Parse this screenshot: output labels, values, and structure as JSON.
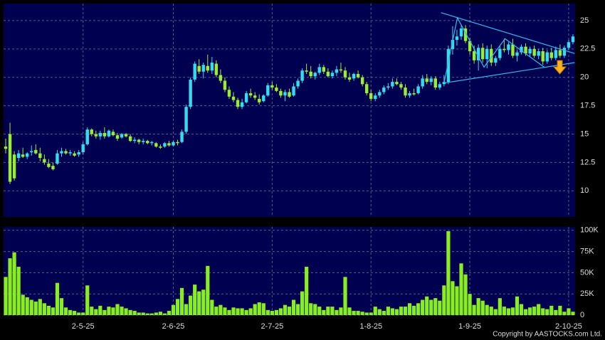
{
  "chart_data": [
    {
      "type": "candlestick",
      "categories": [
        null,
        null,
        null,
        null,
        null,
        null,
        null,
        null,
        null,
        null,
        null,
        null,
        null,
        null,
        null,
        null,
        null,
        null,
        "2-5-25",
        null,
        null,
        null,
        null,
        null,
        null,
        null,
        null,
        null,
        null,
        null,
        null,
        null,
        null,
        null,
        null,
        null,
        null,
        null,
        null,
        "2-6-25",
        null,
        null,
        null,
        null,
        null,
        null,
        null,
        null,
        null,
        null,
        null,
        null,
        null,
        null,
        null,
        null,
        null,
        null,
        null,
        null,
        null,
        null,
        "2-7-25",
        null,
        null,
        null,
        null,
        null,
        null,
        null,
        null,
        null,
        null,
        null,
        null,
        null,
        null,
        null,
        null,
        null,
        null,
        null,
        null,
        null,
        null,
        "1-8-25",
        null,
        null,
        null,
        null,
        null,
        null,
        null,
        null,
        null,
        null,
        null,
        null,
        null,
        null,
        null,
        null,
        null,
        null,
        null,
        null,
        null,
        null,
        "1-9-25",
        null,
        null,
        null,
        null,
        null,
        null,
        null,
        null,
        null,
        null,
        null,
        null,
        null,
        null,
        null,
        null,
        null,
        null,
        null,
        null,
        null,
        null,
        "2-10-25",
        null
      ],
      "ohlc": [
        [
          13.9,
          14.6,
          13.3,
          13.7
        ],
        [
          15.0,
          16.0,
          10.6,
          10.8
        ],
        [
          13.2,
          13.5,
          10.9,
          11.1
        ],
        [
          12.9,
          13.6,
          12.6,
          13.3
        ],
        [
          13.2,
          13.8,
          12.9,
          13.0
        ],
        [
          13.0,
          13.4,
          12.8,
          13.3
        ],
        [
          13.4,
          14.0,
          13.1,
          13.5
        ],
        [
          13.6,
          14.1,
          13.2,
          13.3
        ],
        [
          13.3,
          13.8,
          12.6,
          12.9
        ],
        [
          12.8,
          13.2,
          12.3,
          12.5
        ],
        [
          12.4,
          12.8,
          12.0,
          12.1
        ],
        [
          12.2,
          12.5,
          11.8,
          11.9
        ],
        [
          12.4,
          13.6,
          12.3,
          13.3
        ],
        [
          13.3,
          13.8,
          13.0,
          13.5
        ],
        [
          13.5,
          13.7,
          13.2,
          13.3
        ],
        [
          13.3,
          13.6,
          13.1,
          13.4
        ],
        [
          13.3,
          13.5,
          13.0,
          13.1
        ],
        [
          13.2,
          13.6,
          13.0,
          13.4
        ],
        [
          13.4,
          14.3,
          13.2,
          14.1
        ],
        [
          14.1,
          15.6,
          14.0,
          15.4
        ],
        [
          15.4,
          15.5,
          14.8,
          15.0
        ],
        [
          15.0,
          15.3,
          14.6,
          14.8
        ],
        [
          14.8,
          15.3,
          14.5,
          15.1
        ],
        [
          15.1,
          15.6,
          14.6,
          14.8
        ],
        [
          14.8,
          15.4,
          14.7,
          15.3
        ],
        [
          15.2,
          15.4,
          14.8,
          14.9
        ],
        [
          14.9,
          15.1,
          14.4,
          14.6
        ],
        [
          14.7,
          15.1,
          14.6,
          15.0
        ],
        [
          15.0,
          15.1,
          14.7,
          14.8
        ],
        [
          14.8,
          15.0,
          14.3,
          14.4
        ],
        [
          14.4,
          14.7,
          14.2,
          14.5
        ],
        [
          14.5,
          14.6,
          14.1,
          14.3
        ],
        [
          14.3,
          14.6,
          14.1,
          14.4
        ],
        [
          14.4,
          14.5,
          14.1,
          14.2
        ],
        [
          14.2,
          14.4,
          14.0,
          14.3
        ],
        [
          14.2,
          14.3,
          13.8,
          13.9
        ],
        [
          13.9,
          14.1,
          13.7,
          13.8
        ],
        [
          13.9,
          14.3,
          13.8,
          14.2
        ],
        [
          14.2,
          14.4,
          13.9,
          14.0
        ],
        [
          14.0,
          14.4,
          13.9,
          14.3
        ],
        [
          14.3,
          14.5,
          14.0,
          14.2
        ],
        [
          14.3,
          15.4,
          14.2,
          15.2
        ],
        [
          15.2,
          17.6,
          15.0,
          17.4
        ],
        [
          17.4,
          20.0,
          17.2,
          19.8
        ],
        [
          19.8,
          21.4,
          19.6,
          21.2
        ],
        [
          21.0,
          21.6,
          20.3,
          20.5
        ],
        [
          20.5,
          21.3,
          19.9,
          21.1
        ],
        [
          21.0,
          22.0,
          20.4,
          20.6
        ],
        [
          20.6,
          21.8,
          20.3,
          21.3
        ],
        [
          21.2,
          21.5,
          20.0,
          20.2
        ],
        [
          20.2,
          20.7,
          19.5,
          19.7
        ],
        [
          19.7,
          20.0,
          18.7,
          18.9
        ],
        [
          18.9,
          19.2,
          18.1,
          18.3
        ],
        [
          18.3,
          18.7,
          17.8,
          18.0
        ],
        [
          18.0,
          18.2,
          17.2,
          17.4
        ],
        [
          17.4,
          18.1,
          17.2,
          17.8
        ],
        [
          17.8,
          18.8,
          17.7,
          18.6
        ],
        [
          18.6,
          19.0,
          18.2,
          18.4
        ],
        [
          18.4,
          18.7,
          18.0,
          18.2
        ],
        [
          18.1,
          18.5,
          17.6,
          17.8
        ],
        [
          17.9,
          18.5,
          17.8,
          18.4
        ],
        [
          18.4,
          19.5,
          18.3,
          19.3
        ],
        [
          19.3,
          19.6,
          18.9,
          19.1
        ],
        [
          19.1,
          19.4,
          18.7,
          18.8
        ],
        [
          18.8,
          19.0,
          18.2,
          18.4
        ],
        [
          18.4,
          18.9,
          17.9,
          18.7
        ],
        [
          18.7,
          19.0,
          18.2,
          18.3
        ],
        [
          18.4,
          19.5,
          18.3,
          19.2
        ],
        [
          19.2,
          19.9,
          19.0,
          19.7
        ],
        [
          19.7,
          20.8,
          19.5,
          20.6
        ],
        [
          20.6,
          21.2,
          20.3,
          20.5
        ],
        [
          20.5,
          21.0,
          19.9,
          20.1
        ],
        [
          20.1,
          20.5,
          19.8,
          20.4
        ],
        [
          20.4,
          21.2,
          20.2,
          20.9
        ],
        [
          20.9,
          21.1,
          20.3,
          20.5
        ],
        [
          20.5,
          20.8,
          20.0,
          20.1
        ],
        [
          20.1,
          20.6,
          19.9,
          20.4
        ],
        [
          20.4,
          21.0,
          20.1,
          20.7
        ],
        [
          20.7,
          21.3,
          20.4,
          20.6
        ],
        [
          20.6,
          20.9,
          19.8,
          20.0
        ],
        [
          20.0,
          20.4,
          19.6,
          19.8
        ],
        [
          19.9,
          20.4,
          19.7,
          20.3
        ],
        [
          20.3,
          20.6,
          19.9,
          20.0
        ],
        [
          20.0,
          20.2,
          19.2,
          19.4
        ],
        [
          19.4,
          19.6,
          18.4,
          18.6
        ],
        [
          18.6,
          18.9,
          17.9,
          18.1
        ],
        [
          18.1,
          18.6,
          17.9,
          18.4
        ],
        [
          18.4,
          18.9,
          18.2,
          18.7
        ],
        [
          18.7,
          19.3,
          18.5,
          19.1
        ],
        [
          19.1,
          19.5,
          18.9,
          19.2
        ],
        [
          19.2,
          19.9,
          19.0,
          19.6
        ],
        [
          19.6,
          19.9,
          19.3,
          19.4
        ],
        [
          19.4,
          19.6,
          18.9,
          19.1
        ],
        [
          19.1,
          19.4,
          18.2,
          18.4
        ],
        [
          18.4,
          18.8,
          18.2,
          18.6
        ],
        [
          18.6,
          19.0,
          18.4,
          18.5
        ],
        [
          18.6,
          19.4,
          18.5,
          19.2
        ],
        [
          19.2,
          20.2,
          19.0,
          19.9
        ],
        [
          19.9,
          20.3,
          19.4,
          19.6
        ],
        [
          19.6,
          20.1,
          19.3,
          19.9
        ],
        [
          19.9,
          20.1,
          18.9,
          19.1
        ],
        [
          19.1,
          19.6,
          18.9,
          19.4
        ],
        [
          19.4,
          20.2,
          19.2,
          19.6
        ],
        [
          19.6,
          22.8,
          19.4,
          22.5
        ],
        [
          22.5,
          24.5,
          22.0,
          23.3
        ],
        [
          23.3,
          24.2,
          22.8,
          23.6
        ],
        [
          23.6,
          24.6,
          23.3,
          24.3
        ],
        [
          24.3,
          24.6,
          23.0,
          23.2
        ],
        [
          23.2,
          23.5,
          22.0,
          22.3
        ],
        [
          22.3,
          22.8,
          21.2,
          21.5
        ],
        [
          21.5,
          22.9,
          20.6,
          22.6
        ],
        [
          22.6,
          23.0,
          21.3,
          21.6
        ],
        [
          21.6,
          22.8,
          20.8,
          22.5
        ],
        [
          22.5,
          22.9,
          21.0,
          21.3
        ],
        [
          21.3,
          21.9,
          21.0,
          21.7
        ],
        [
          21.7,
          22.8,
          21.5,
          22.5
        ],
        [
          22.5,
          23.4,
          22.2,
          22.4
        ],
        [
          22.4,
          23.1,
          22.0,
          22.9
        ],
        [
          22.9,
          23.4,
          21.7,
          21.9
        ],
        [
          21.9,
          22.4,
          21.4,
          22.2
        ],
        [
          22.2,
          22.9,
          22.0,
          22.7
        ],
        [
          22.7,
          23.0,
          21.9,
          22.1
        ],
        [
          22.1,
          22.7,
          21.8,
          22.5
        ],
        [
          22.5,
          22.8,
          21.7,
          21.9
        ],
        [
          21.9,
          22.5,
          21.6,
          22.3
        ],
        [
          22.3,
          22.6,
          21.1,
          21.4
        ],
        [
          21.4,
          22.4,
          21.2,
          22.2
        ],
        [
          22.2,
          22.6,
          21.5,
          21.7
        ],
        [
          21.7,
          22.7,
          21.5,
          22.4
        ],
        [
          22.4,
          22.9,
          21.7,
          21.9
        ],
        [
          21.9,
          22.8,
          21.7,
          22.6
        ],
        [
          22.6,
          23.3,
          22.4,
          23.1
        ],
        [
          23.1,
          23.8,
          22.9,
          23.6
        ]
      ],
      "up_color": "#33ddee",
      "down_color": "#99ee33",
      "ylim": [
        7.7,
        26.5
      ],
      "yticks": [
        10,
        12.5,
        15,
        17.5,
        20,
        22.5,
        25
      ],
      "grid": true,
      "trendline_color": "#33bbee",
      "trendlines": [
        {
          "x": [
            101.3,
            132.4
          ],
          "y": [
            25.7,
            22.1
          ]
        },
        {
          "x": [
            102,
            132.4
          ],
          "y": [
            19.5,
            21.3
          ]
        },
        {
          "x": [
            102,
            105.1,
            111.3,
            116.2,
            125.3
          ],
          "y": [
            19.5,
            25.25,
            20.9,
            23.4,
            20.9
          ]
        }
      ]
    },
    {
      "type": "bar",
      "color": "#88ee22",
      "values": [
        45000,
        67000,
        74000,
        57000,
        24000,
        21000,
        18000,
        16000,
        19000,
        14000,
        11000,
        9000,
        38000,
        20000,
        9000,
        6000,
        5000,
        3000,
        3000,
        35000,
        10000,
        7000,
        11000,
        6000,
        10000,
        9000,
        13000,
        10000,
        8000,
        6000,
        5000,
        3000,
        3000,
        2000,
        2000,
        3000,
        4000,
        2000,
        5000,
        12000,
        19000,
        32000,
        13000,
        23000,
        36000,
        28000,
        30000,
        58000,
        18000,
        10000,
        12000,
        9000,
        6000,
        9000,
        8000,
        8000,
        6000,
        8000,
        13000,
        15000,
        14000,
        6000,
        5000,
        6000,
        8000,
        12000,
        10000,
        18000,
        13000,
        28000,
        57000,
        14000,
        13000,
        10000,
        6000,
        10000,
        10000,
        6000,
        9000,
        45000,
        9000,
        5000,
        5000,
        4000,
        3000,
        3000,
        10000,
        7000,
        5000,
        10000,
        8000,
        7000,
        10000,
        10000,
        14000,
        11000,
        14000,
        18000,
        22000,
        18000,
        20000,
        17000,
        35000,
        99000,
        40000,
        34000,
        61000,
        48000,
        25000,
        12000,
        20000,
        17000,
        12000,
        10000,
        7000,
        20000,
        10000,
        8000,
        9000,
        22000,
        13000,
        7000,
        9000,
        10000,
        13000,
        8000,
        7000,
        11000,
        6000,
        11000,
        4000,
        8000,
        4000
      ],
      "ylim": [
        0,
        104000
      ],
      "yticks": [
        0,
        {
          "value": 25000,
          "label": "25K"
        },
        {
          "value": 50000,
          "label": "50K"
        },
        {
          "value": 75000,
          "label": "75K"
        },
        {
          "value": 100000,
          "label": "100K"
        }
      ],
      "grid": true
    }
  ],
  "copyright": "Copyright by AASTOCKS.com Ltd."
}
